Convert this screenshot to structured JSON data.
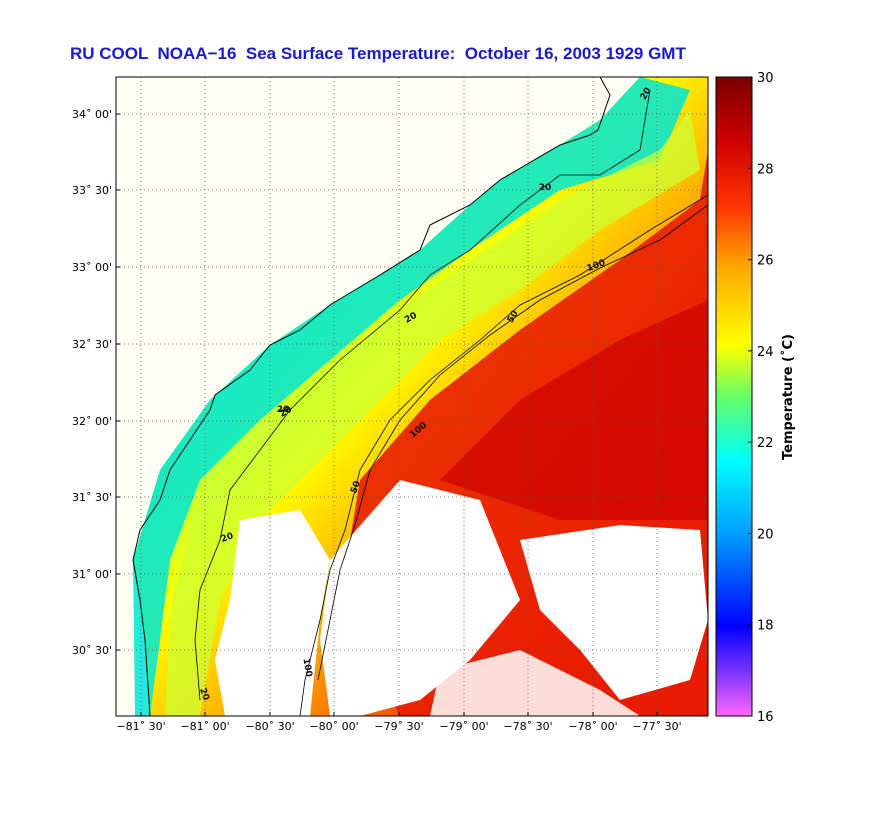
{
  "title": "RU COOL  NOAA−16  Sea Surface Temperature:  October 16, 2003 1929 GMT",
  "colorbar": {
    "label": "Temperature (˚C)",
    "ticks": [
      "30",
      "28",
      "26",
      "24",
      "22",
      "20",
      "18",
      "16"
    ],
    "min": 16,
    "max": 30,
    "colors": [
      "#ff66ff",
      "#6633ff",
      "#0000ff",
      "#0099ff",
      "#00ffff",
      "#66ff66",
      "#ffff00",
      "#ffaa00",
      "#ff3300",
      "#cc0000",
      "#7a0000"
    ]
  },
  "axes": {
    "x_ticks": [
      "−81˚ 30'",
      "−81˚ 00'",
      "−80˚ 30'",
      "−80˚ 00'",
      "−79˚ 30'",
      "−79˚ 00'",
      "−78˚ 30'",
      "−78˚ 00'",
      "−77˚ 30'"
    ],
    "y_ticks": [
      "34˚ 00'",
      "33˚ 30'",
      "33˚ 00'",
      "32˚ 30'",
      "32˚ 00'",
      "31˚ 30'",
      "31˚ 00'",
      "30˚ 30'"
    ],
    "grid": "dotted"
  },
  "contours": {
    "labels": [
      "20",
      "20",
      "20",
      "20",
      "20",
      "20",
      "50",
      "50",
      "100",
      "100",
      "100",
      "20"
    ]
  },
  "legend_colors": {
    "land": "#fffff4",
    "cloud": "#ffffff"
  }
}
